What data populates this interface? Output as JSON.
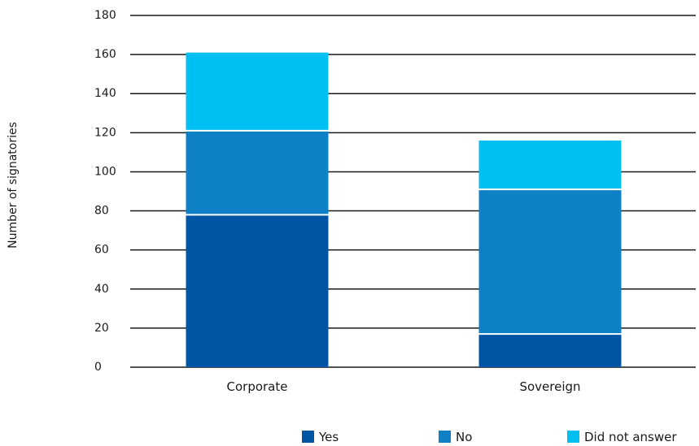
{
  "chart_data": {
    "type": "bar",
    "stacked": true,
    "categories": [
      "Corporate",
      "Sovereign"
    ],
    "series": [
      {
        "name": "Yes",
        "values": [
          78,
          17
        ],
        "color": "#0056a4"
      },
      {
        "name": "No",
        "values": [
          43,
          74
        ],
        "color": "#0e80c6"
      },
      {
        "name": "Did not answer",
        "values": [
          40,
          25
        ],
        "color": "#00bff2"
      }
    ],
    "yticks": [
      "0",
      "20",
      "40",
      "60",
      "80",
      "100",
      "120",
      "140",
      "160",
      "180"
    ],
    "ylim": [
      0,
      180
    ],
    "ylabel": "Number of signatories",
    "xlabel": "",
    "title": "",
    "grid": true,
    "legend_position": "bottom-right"
  }
}
